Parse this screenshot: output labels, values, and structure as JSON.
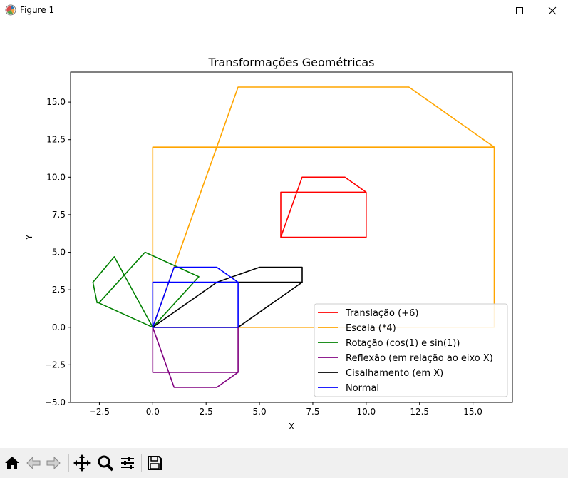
{
  "window": {
    "title": "Figure 1"
  },
  "toolbar": {
    "buttons": [
      "home-icon",
      "back-arrow-icon",
      "forward-arrow-icon",
      "pan-move-icon",
      "zoom-magnifier-icon",
      "configure-subplots-icon",
      "save-floppy-icon"
    ]
  },
  "chart_data": {
    "type": "line",
    "title": "Transformações Geométricas",
    "xlabel": "X",
    "ylabel": "Y",
    "xlim": [
      -3.85,
      16.85
    ],
    "ylim": [
      -5.0,
      17.0
    ],
    "xticks": [
      -2.5,
      0.0,
      2.5,
      5.0,
      7.5,
      10.0,
      12.5,
      15.0
    ],
    "xtick_labels": [
      "−2.5",
      "0.0",
      "2.5",
      "5.0",
      "7.5",
      "10.0",
      "12.5",
      "15.0"
    ],
    "yticks": [
      -5.0,
      -2.5,
      0.0,
      2.5,
      5.0,
      7.5,
      10.0,
      12.5,
      15.0
    ],
    "ytick_labels": [
      "−5.0",
      "−2.5",
      "0.0",
      "2.5",
      "5.0",
      "7.5",
      "10.0",
      "12.5",
      "15.0"
    ],
    "grid": false,
    "legend_position": "lower-right",
    "series": [
      {
        "name": "Translação (+6)",
        "color": "#ff0000",
        "x": [
          6,
          10,
          10,
          6,
          6,
          7,
          9,
          10
        ],
        "y": [
          6,
          6,
          9,
          9,
          6,
          10,
          10,
          9
        ]
      },
      {
        "name": "Escala (*4)",
        "color": "#ffa500",
        "x": [
          0,
          16,
          16,
          0,
          0,
          4,
          12,
          16
        ],
        "y": [
          0,
          0,
          12,
          12,
          0,
          16,
          16,
          12
        ]
      },
      {
        "name": "Rotação (cos(1) e sin(1))",
        "color": "#008000",
        "x": [
          0,
          2.16,
          -0.36,
          -2.52,
          0,
          -1.8,
          -2.8,
          -2.6
        ],
        "y": [
          0,
          3.37,
          5.0,
          1.62,
          0,
          4.7,
          3.0,
          1.6
        ]
      },
      {
        "name": "Reflexão (em relação ao eixo X)",
        "color": "#800080",
        "x": [
          0,
          4,
          4,
          0,
          0,
          1,
          3,
          4
        ],
        "y": [
          0,
          0,
          -3,
          -3,
          0,
          -4,
          -4,
          -3
        ]
      },
      {
        "name": "Cisalhamento (em X)",
        "color": "#000000",
        "x": [
          0,
          4,
          7,
          3,
          0,
          3,
          5,
          7,
          7
        ],
        "y": [
          0,
          0,
          3,
          3,
          0,
          3,
          4,
          4,
          3
        ]
      },
      {
        "name": "Normal",
        "color": "#0000ff",
        "x": [
          0,
          4,
          4,
          0,
          0,
          1,
          3,
          4
        ],
        "y": [
          0,
          0,
          3,
          3,
          0,
          4,
          4,
          3
        ]
      }
    ]
  }
}
